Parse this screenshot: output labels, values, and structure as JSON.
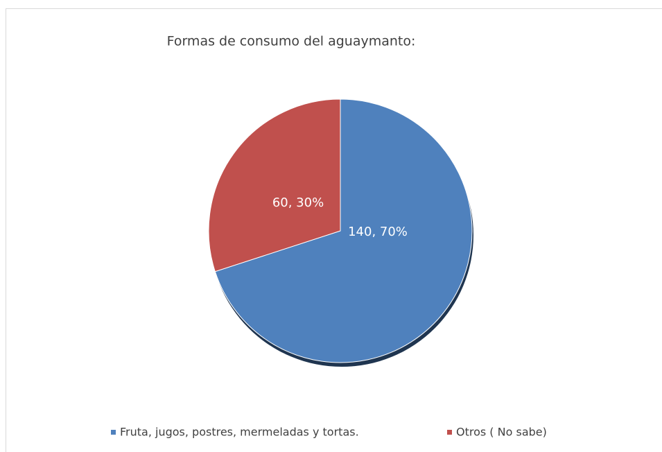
{
  "chart_data": {
    "type": "pie",
    "title": "Formas de consumo del aguaymanto:",
    "categories": [
      "Fruta, jugos, postres, mermeladas y tortas.",
      "Otros ( No  sabe)"
    ],
    "values": [
      140,
      60
    ],
    "value_labels": [
      "140, 70%",
      "60, 30%"
    ],
    "colors": [
      "#4f81bd",
      "#c0504d"
    ],
    "legend": "bottom"
  }
}
